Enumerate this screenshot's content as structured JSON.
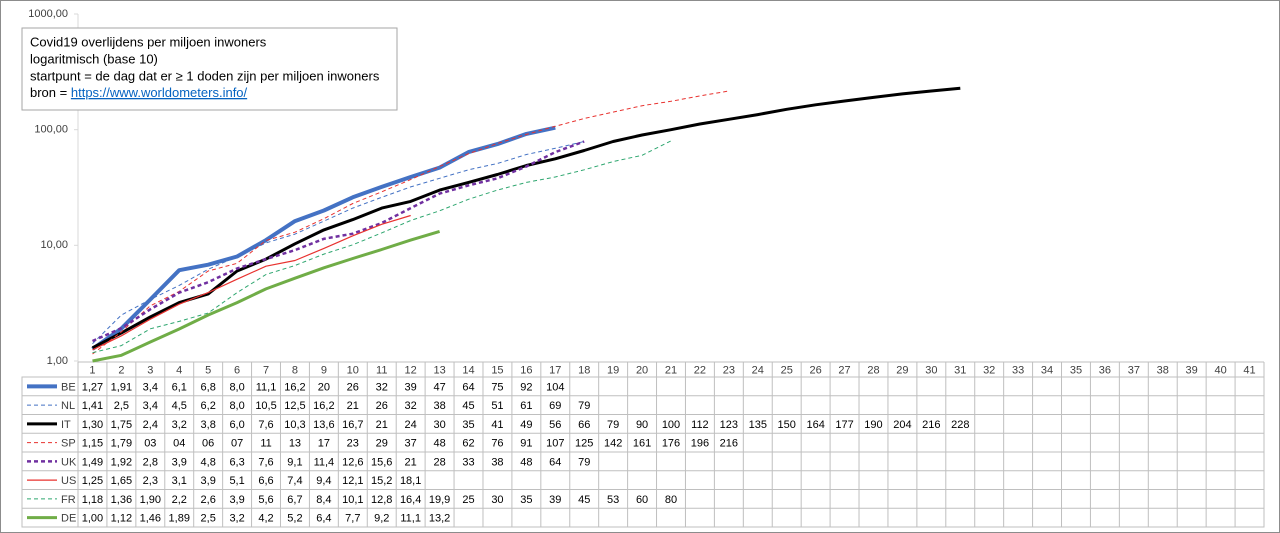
{
  "chart_data": {
    "type": "line",
    "title_lines": [
      "Covid19 overlijdens per miljoen inwoners",
      "logaritmisch (base 10)",
      "startpunt = de dag dat er ≥ 1 doden zijn per miljoen inwoners"
    ],
    "source_prefix": "bron =",
    "source_link": "https://www.worldometers.info/",
    "log_scale": true,
    "grid": false,
    "ylim": [
      1,
      1000
    ],
    "yticks": [
      {
        "value": 1,
        "label": "1,00"
      },
      {
        "value": 10,
        "label": "10,00"
      },
      {
        "value": 100,
        "label": "100,00"
      },
      {
        "value": 1000,
        "label": "1000,00"
      }
    ],
    "categories": [
      1,
      2,
      3,
      4,
      5,
      6,
      7,
      8,
      9,
      10,
      11,
      12,
      13,
      14,
      15,
      16,
      17,
      18,
      19,
      20,
      21,
      22,
      23,
      24,
      25,
      26,
      27,
      28,
      29,
      30,
      31,
      32,
      33,
      34,
      35,
      36,
      37,
      38,
      39,
      40,
      41
    ],
    "series": [
      {
        "name": "BE",
        "color": "#4472c4",
        "width": 4,
        "dash": false,
        "values": [
          1.27,
          1.91,
          3.4,
          6.1,
          6.8,
          8.0,
          11.1,
          16.2,
          20,
          26,
          32,
          39,
          47,
          64,
          75,
          92,
          104,
          null,
          null,
          null,
          null,
          null,
          null,
          null,
          null,
          null,
          null,
          null,
          null,
          null,
          null,
          null,
          null,
          null,
          null,
          null,
          null,
          null,
          null,
          null,
          null
        ],
        "value_labels": [
          "1,27",
          "1,91",
          "3,4",
          "6,1",
          "6,8",
          "8,0",
          "11,1",
          "16,2",
          "20",
          "26",
          "32",
          "39",
          "47",
          "64",
          "75",
          "92",
          "104",
          null,
          null,
          null,
          null,
          null,
          null,
          null,
          null,
          null,
          null,
          null,
          null,
          null,
          null,
          null,
          null,
          null,
          null,
          null,
          null,
          null,
          null,
          null,
          null
        ]
      },
      {
        "name": "NL",
        "color": "#4472c4",
        "width": 1,
        "dash": true,
        "values": [
          1.41,
          2.5,
          3.4,
          4.5,
          6.2,
          8.0,
          10.5,
          12.5,
          16.2,
          21,
          26,
          32,
          38,
          45,
          51,
          61,
          69,
          79,
          null,
          null,
          null,
          null,
          null,
          null,
          null,
          null,
          null,
          null,
          null,
          null,
          null,
          null,
          null,
          null,
          null,
          null,
          null,
          null,
          null,
          null,
          null
        ],
        "value_labels": [
          "1,41",
          "2,5",
          "3,4",
          "4,5",
          "6,2",
          "8,0",
          "10,5",
          "12,5",
          "16,2",
          "21",
          "26",
          "32",
          "38",
          "45",
          "51",
          "61",
          "69",
          "79",
          null,
          null,
          null,
          null,
          null,
          null,
          null,
          null,
          null,
          null,
          null,
          null,
          null,
          null,
          null,
          null,
          null,
          null,
          null,
          null,
          null,
          null,
          null
        ]
      },
      {
        "name": "IT",
        "color": "#000000",
        "width": 3,
        "dash": false,
        "values": [
          1.3,
          1.75,
          2.4,
          3.2,
          3.8,
          6.0,
          7.6,
          10.3,
          13.6,
          16.7,
          21,
          24,
          30,
          35,
          41,
          49,
          56,
          66,
          79,
          90,
          100,
          112,
          123,
          135,
          150,
          164,
          177,
          190,
          204,
          216,
          228,
          null,
          null,
          null,
          null,
          null,
          null,
          null,
          null,
          null,
          null
        ],
        "value_labels": [
          "1,30",
          "1,75",
          "2,4",
          "3,2",
          "3,8",
          "6,0",
          "7,6",
          "10,3",
          "13,6",
          "16,7",
          "21",
          "24",
          "30",
          "35",
          "41",
          "49",
          "56",
          "66",
          "79",
          "90",
          "100",
          "112",
          "123",
          "135",
          "150",
          "164",
          "177",
          "190",
          "204",
          "216",
          "228",
          null,
          null,
          null,
          null,
          null,
          null,
          null,
          null,
          null,
          null
        ]
      },
      {
        "name": "SP",
        "color": "#e8322f",
        "width": 1,
        "dash": true,
        "values": [
          1.15,
          1.79,
          3,
          4,
          6,
          7,
          11,
          13,
          17,
          23,
          29,
          37,
          48,
          62,
          76,
          91,
          107,
          125,
          142,
          161,
          176,
          196,
          216,
          null,
          null,
          null,
          null,
          null,
          null,
          null,
          null,
          null,
          null,
          null,
          null,
          null,
          null,
          null,
          null,
          null,
          null
        ],
        "value_labels": [
          "1,15",
          "1,79",
          "03",
          "04",
          "06",
          "07",
          "11",
          "13",
          "17",
          "23",
          "29",
          "37",
          "48",
          "62",
          "76",
          "91",
          "107",
          "125",
          "142",
          "161",
          "176",
          "196",
          "216",
          null,
          null,
          null,
          null,
          null,
          null,
          null,
          null,
          null,
          null,
          null,
          null,
          null,
          null,
          null,
          null,
          null,
          null
        ]
      },
      {
        "name": "UK",
        "color": "#7030a0",
        "width": 2.5,
        "dash": true,
        "values": [
          1.49,
          1.92,
          2.8,
          3.9,
          4.8,
          6.3,
          7.6,
          9.1,
          11.4,
          12.6,
          15.6,
          21,
          28,
          33,
          38,
          48,
          64,
          79,
          null,
          null,
          null,
          null,
          null,
          null,
          null,
          null,
          null,
          null,
          null,
          null,
          null,
          null,
          null,
          null,
          null,
          null,
          null,
          null,
          null,
          null,
          null
        ],
        "value_labels": [
          "1,49",
          "1,92",
          "2,8",
          "3,9",
          "4,8",
          "6,3",
          "7,6",
          "9,1",
          "11,4",
          "12,6",
          "15,6",
          "21",
          "28",
          "33",
          "38",
          "48",
          "64",
          "79",
          null,
          null,
          null,
          null,
          null,
          null,
          null,
          null,
          null,
          null,
          null,
          null,
          null,
          null,
          null,
          null,
          null,
          null,
          null,
          null,
          null,
          null,
          null
        ]
      },
      {
        "name": "US",
        "color": "#e8322f",
        "width": 1.2,
        "dash": false,
        "values": [
          1.25,
          1.65,
          2.3,
          3.1,
          3.9,
          5.1,
          6.6,
          7.4,
          9.4,
          12.1,
          15.2,
          18.1,
          null,
          null,
          null,
          null,
          null,
          null,
          null,
          null,
          null,
          null,
          null,
          null,
          null,
          null,
          null,
          null,
          null,
          null,
          null,
          null,
          null,
          null,
          null,
          null,
          null,
          null,
          null,
          null,
          null
        ],
        "value_labels": [
          "1,25",
          "1,65",
          "2,3",
          "3,1",
          "3,9",
          "5,1",
          "6,6",
          "7,4",
          "9,4",
          "12,1",
          "15,2",
          "18,1",
          null,
          null,
          null,
          null,
          null,
          null,
          null,
          null,
          null,
          null,
          null,
          null,
          null,
          null,
          null,
          null,
          null,
          null,
          null,
          null,
          null,
          null,
          null,
          null,
          null,
          null,
          null,
          null,
          null
        ]
      },
      {
        "name": "FR",
        "color": "#2ea66f",
        "width": 1,
        "dash": true,
        "values": [
          1.18,
          1.36,
          1.9,
          2.2,
          2.6,
          3.9,
          5.6,
          6.7,
          8.4,
          10.1,
          12.8,
          16.4,
          19.9,
          25,
          30,
          35,
          39,
          45,
          53,
          60,
          80,
          null,
          null,
          null,
          null,
          null,
          null,
          null,
          null,
          null,
          null,
          null,
          null,
          null,
          null,
          null,
          null,
          null,
          null,
          null,
          null
        ],
        "value_labels": [
          "1,18",
          "1,36",
          "1,90",
          "2,2",
          "2,6",
          "3,9",
          "5,6",
          "6,7",
          "8,4",
          "10,1",
          "12,8",
          "16,4",
          "19,9",
          "25",
          "30",
          "35",
          "39",
          "45",
          "53",
          "60",
          "80",
          null,
          null,
          null,
          null,
          null,
          null,
          null,
          null,
          null,
          null,
          null,
          null,
          null,
          null,
          null,
          null,
          null,
          null,
          null,
          null
        ]
      },
      {
        "name": "DE",
        "color": "#70ad47",
        "width": 3,
        "dash": false,
        "values": [
          1.0,
          1.12,
          1.46,
          1.89,
          2.5,
          3.2,
          4.2,
          5.2,
          6.4,
          7.7,
          9.2,
          11.1,
          13.2,
          null,
          null,
          null,
          null,
          null,
          null,
          null,
          null,
          null,
          null,
          null,
          null,
          null,
          null,
          null,
          null,
          null,
          null,
          null,
          null,
          null,
          null,
          null,
          null,
          null,
          null,
          null,
          null
        ],
        "value_labels": [
          "1,00",
          "1,12",
          "1,46",
          "1,89",
          "2,5",
          "3,2",
          "4,2",
          "5,2",
          "6,4",
          "7,7",
          "9,2",
          "11,1",
          "13,2",
          null,
          null,
          null,
          null,
          null,
          null,
          null,
          null,
          null,
          null,
          null,
          null,
          null,
          null,
          null,
          null,
          null,
          null,
          null,
          null,
          null,
          null,
          null,
          null,
          null,
          null,
          null,
          null
        ]
      }
    ]
  }
}
